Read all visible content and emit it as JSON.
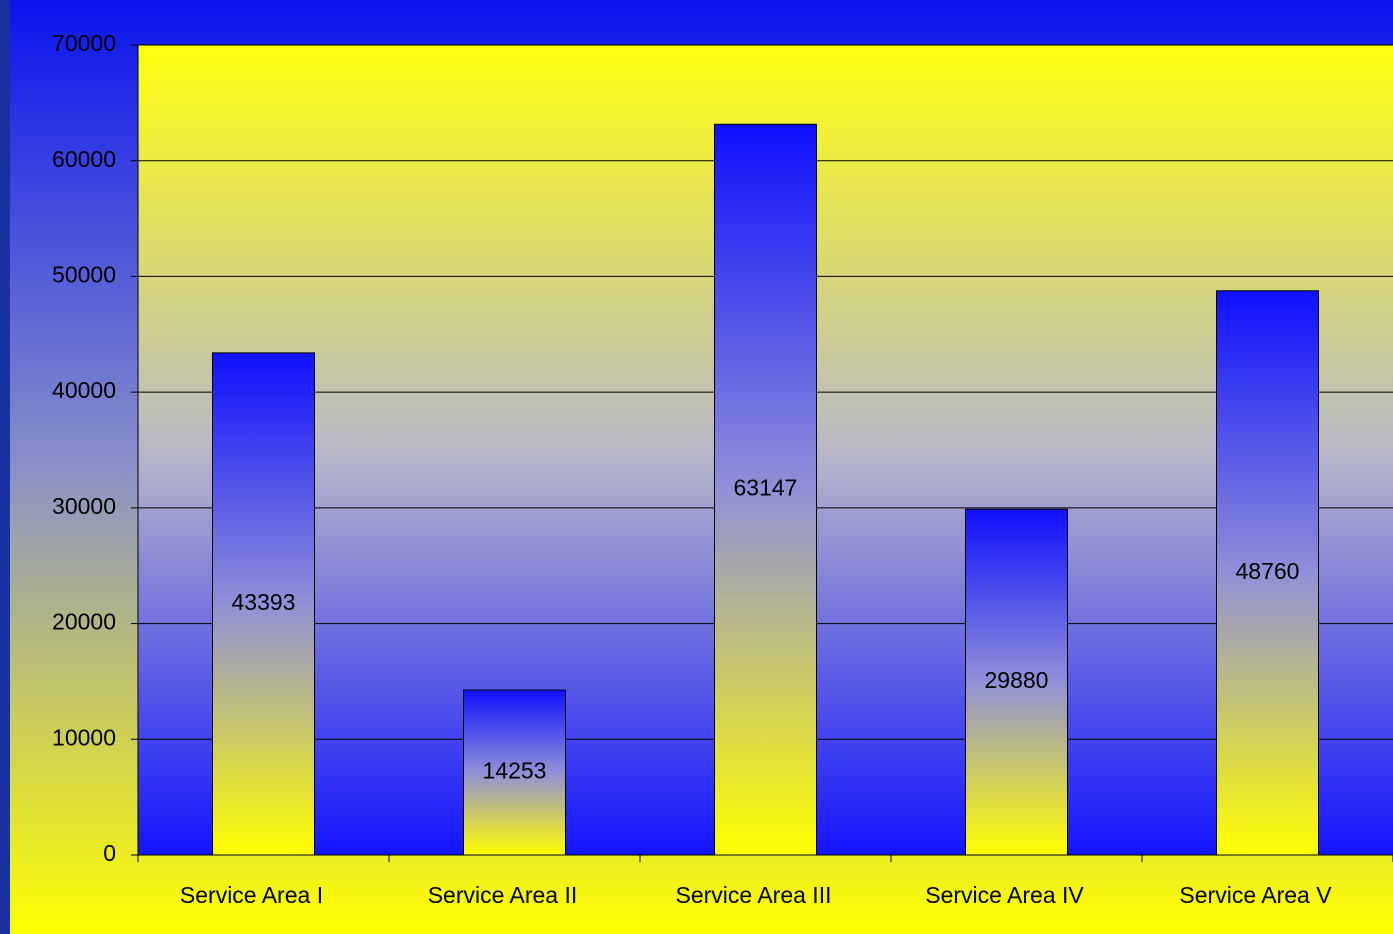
{
  "chart_data": {
    "type": "bar",
    "categories": [
      "Service Area I",
      "Service Area II",
      "Service Area III",
      "Service Area IV",
      "Service Area V"
    ],
    "values": [
      43393,
      14253,
      63147,
      29880,
      48760
    ],
    "ylim": [
      0,
      70000
    ],
    "yticks": [
      0,
      10000,
      20000,
      30000,
      40000,
      50000,
      60000,
      70000
    ],
    "grid": true,
    "data_labels": true
  }
}
